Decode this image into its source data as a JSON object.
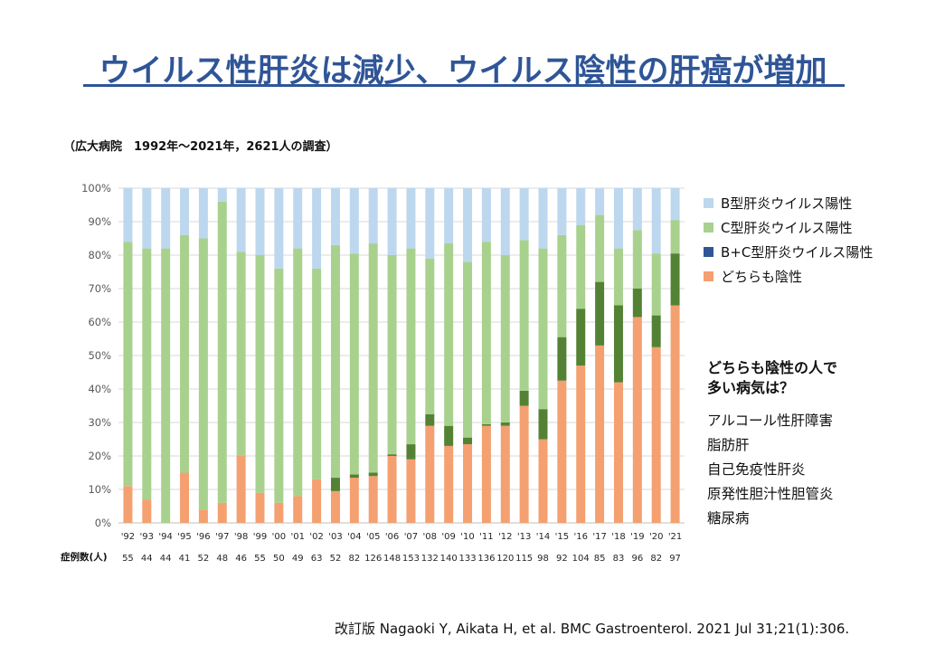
{
  "title": "ウイルス性肝炎は減少、ウイルス陰性の肝癌が増加",
  "subtitle": "（広大病院　1992年〜2021年，2621人の調査）",
  "count_label": "症例数(人)",
  "side_panel": {
    "question_lines": [
      "どちらも陰性の人で",
      "多い病気は？"
    ],
    "diseases": [
      "アルコール性肝障害",
      "脂肪肝",
      "自己免疫性肝炎",
      "原発性胆汁性胆管炎",
      "糖尿病"
    ]
  },
  "citation": "改訂版  Nagaoki Y, Aikata H, et al. BMC Gastroenterol. 2021 Jul 31;21(1):306.",
  "colors": {
    "neither": "#f4a070",
    "bc": "#548235",
    "hcv": "#a9d18e",
    "hbv": "#bdd7ee",
    "hbv_top": "#4472c4"
  },
  "chart_data": {
    "type": "bar",
    "stacked": true,
    "categories": [
      "'92",
      "'93",
      "'94",
      "'95",
      "'96",
      "'97",
      "'98",
      "'99",
      "'00",
      "'01",
      "'02",
      "'03",
      "'04",
      "'05",
      "'06",
      "'07",
      "'08",
      "'09",
      "'10",
      "'11",
      "'12",
      "'13",
      "'14",
      "'15",
      "'16",
      "'17",
      "'18",
      "'19",
      "'20",
      "'21"
    ],
    "case_counts": [
      "55",
      "44",
      "44",
      "41",
      "52",
      "48",
      "46",
      "55",
      "50",
      "49",
      "63",
      "52",
      "82",
      "126",
      "148",
      "153",
      "132",
      "140",
      "133",
      "136",
      "120",
      "115",
      "98",
      "92",
      "104",
      "85",
      "83",
      "96",
      "82",
      "97"
    ],
    "y_ticks": [
      "0%",
      "10%",
      "20%",
      "30%",
      "40%",
      "50%",
      "60%",
      "70%",
      "80%",
      "90%",
      "100%"
    ],
    "ylim": [
      0,
      100
    ],
    "legend_position": "right",
    "series": [
      {
        "name": "どちらも陰性",
        "color_key": "neither",
        "values": [
          11,
          7,
          0,
          15,
          4,
          6,
          20,
          9,
          6,
          8,
          13,
          9.5,
          13.5,
          14,
          20,
          19,
          29,
          23,
          23.5,
          29,
          29,
          35,
          25,
          42.5,
          47,
          53,
          42,
          61.5,
          52.5,
          65
        ]
      },
      {
        "name": "B+C型肝炎ウイルス陽性",
        "color_key": "bc",
        "values": [
          0,
          0,
          0,
          0,
          0,
          0,
          0,
          0,
          0,
          0,
          0,
          4,
          1,
          1,
          0.5,
          4.5,
          3.5,
          6,
          2,
          0.5,
          1,
          4.5,
          9,
          13,
          17,
          19,
          23,
          8.5,
          9.5,
          15.5
        ]
      },
      {
        "name": "C型肝炎ウイルス陽性",
        "color_key": "hcv",
        "values": [
          73,
          75,
          82,
          71,
          81,
          90,
          61,
          71,
          70,
          74,
          63,
          69.5,
          66,
          68.5,
          59.5,
          58.5,
          46.5,
          54.5,
          52.5,
          54.5,
          50,
          45,
          48,
          30.5,
          25,
          20,
          17,
          17.5,
          18.5,
          10
        ]
      },
      {
        "name": "B型肝炎ウイルス陽性",
        "color_key": "hbv",
        "values": [
          16,
          18,
          18,
          14,
          15,
          4,
          19,
          20,
          24,
          18,
          24,
          17,
          19.5,
          16.5,
          20,
          18,
          21,
          16.5,
          22,
          16,
          20,
          15.5,
          18,
          14,
          11,
          8,
          18,
          12.5,
          19.5,
          9.5
        ]
      }
    ]
  }
}
